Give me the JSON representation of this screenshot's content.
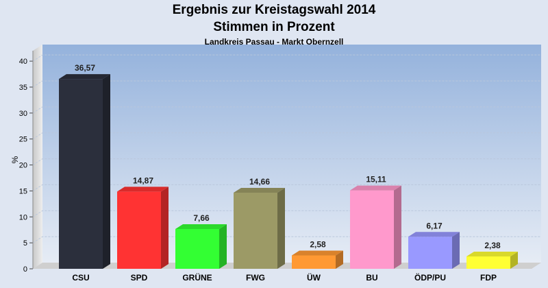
{
  "chart_data": {
    "type": "bar",
    "title": "Ergebnis zur Kreistagswahl 2014",
    "subtitle": "Stimmen in Prozent",
    "subsubtitle": "Landkreis Passau - Markt Obernzell",
    "ylabel": "%",
    "ylim": [
      0,
      42
    ],
    "yticks": [
      0,
      5,
      10,
      15,
      20,
      25,
      30,
      35,
      40
    ],
    "grid": true,
    "categories": [
      "CSU",
      "SPD",
      "GRÜNE",
      "FWG",
      "ÜW",
      "BU",
      "ÖDP/PU",
      "FDP"
    ],
    "values": [
      36.57,
      14.87,
      7.66,
      14.66,
      2.58,
      15.11,
      6.17,
      2.38
    ],
    "value_labels": [
      "36,57",
      "14,87",
      "7,66",
      "14,66",
      "2,58",
      "15,11",
      "6,17",
      "2,38"
    ],
    "colors": [
      "#2b2f3c",
      "#ff3333",
      "#33ff33",
      "#9c9a66",
      "#ff9933",
      "#ff99cc",
      "#9999ff",
      "#ffff33"
    ]
  }
}
